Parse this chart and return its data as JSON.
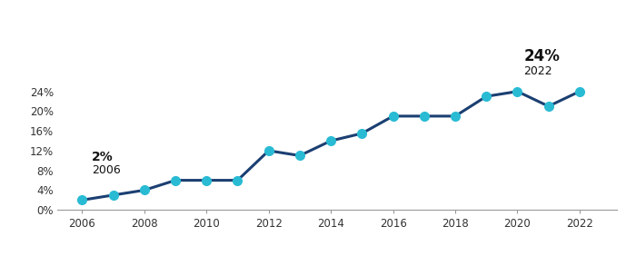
{
  "years": [
    2006,
    2007,
    2008,
    2009,
    2010,
    2011,
    2012,
    2013,
    2014,
    2015,
    2016,
    2017,
    2018,
    2019,
    2020,
    2021,
    2022
  ],
  "values": [
    0.02,
    0.03,
    0.04,
    0.06,
    0.06,
    0.06,
    0.12,
    0.11,
    0.14,
    0.155,
    0.19,
    0.19,
    0.19,
    0.23,
    0.24,
    0.21,
    0.24
  ],
  "line_color": "#1b3f72",
  "marker_color": "#2abbd4",
  "marker_size": 7,
  "line_width": 2.2,
  "ylim": [
    0,
    0.28
  ],
  "yticks": [
    0.0,
    0.04,
    0.08,
    0.12,
    0.16,
    0.2,
    0.24
  ],
  "ytick_labels": [
    "0%",
    "4%",
    "8%",
    "12%",
    "16%",
    "20%",
    "24%"
  ],
  "xticks": [
    2006,
    2008,
    2010,
    2012,
    2014,
    2016,
    2018,
    2020,
    2022
  ],
  "xlim": [
    2005.2,
    2023.2
  ],
  "background_color": "#ffffff",
  "spine_color": "#999999",
  "ann_start_bold": "2%",
  "ann_start_normal": "2006",
  "ann_end_bold": "24%",
  "ann_end_normal": "2022"
}
